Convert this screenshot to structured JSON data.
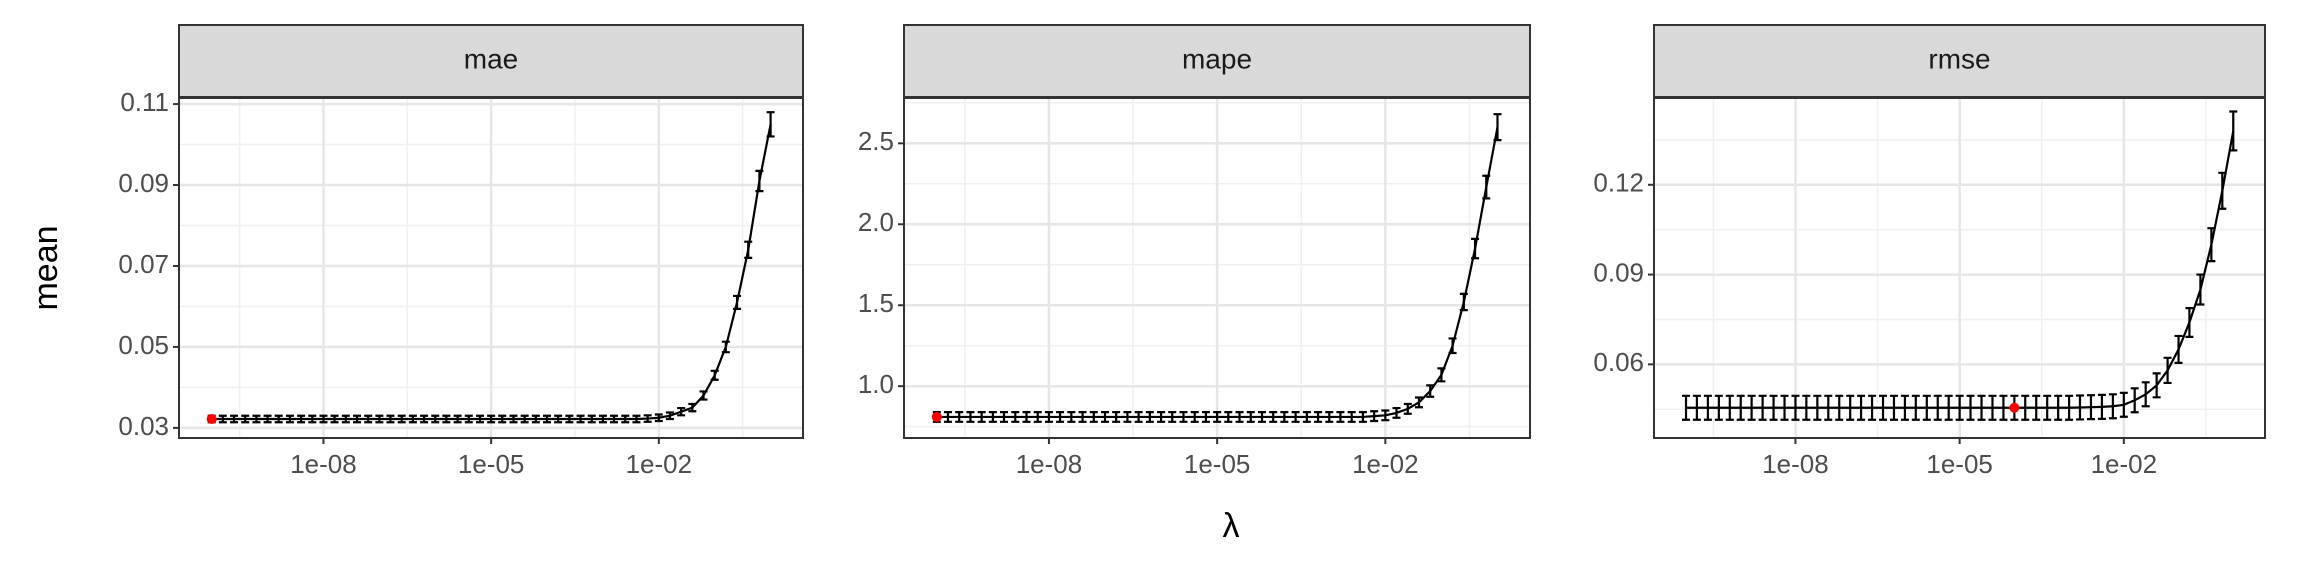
{
  "axis_labels": {
    "x": "λ",
    "y": "mean"
  },
  "chart_data": [
    {
      "type": "line",
      "title": "mae",
      "log_x": true,
      "grid": true,
      "color": "#000000",
      "x": [
        1e-10,
        1.58e-10,
        2.51e-10,
        3.98e-10,
        6.31e-10,
        1e-09,
        1.58e-09,
        2.51e-09,
        3.98e-09,
        6.31e-09,
        1e-08,
        1.58e-08,
        2.51e-08,
        3.98e-08,
        6.31e-08,
        1e-07,
        1.58e-07,
        2.51e-07,
        3.98e-07,
        6.31e-07,
        1e-06,
        1.58e-06,
        2.51e-06,
        3.98e-06,
        6.31e-06,
        1e-05,
        1.58e-05,
        2.51e-05,
        3.98e-05,
        6.31e-05,
        0.0001,
        0.000158,
        0.000251,
        0.000398,
        0.000631,
        0.001,
        0.00158,
        0.00251,
        0.00398,
        0.00631,
        0.01,
        0.0158,
        0.0251,
        0.0398,
        0.0631,
        0.1,
        0.158,
        0.251,
        0.398,
        0.631,
        1
      ],
      "values": [
        0.0322,
        0.0322,
        0.0322,
        0.0322,
        0.0322,
        0.0322,
        0.0322,
        0.0322,
        0.0322,
        0.0322,
        0.0322,
        0.0322,
        0.0322,
        0.0322,
        0.0322,
        0.0322,
        0.0322,
        0.0322,
        0.0322,
        0.0322,
        0.0322,
        0.0322,
        0.0322,
        0.0322,
        0.0322,
        0.0322,
        0.0322,
        0.0322,
        0.0322,
        0.0322,
        0.0322,
        0.0322,
        0.0322,
        0.0322,
        0.0322,
        0.0322,
        0.0322,
        0.0322,
        0.0322,
        0.0323,
        0.0325,
        0.033,
        0.034,
        0.035,
        0.038,
        0.043,
        0.05,
        0.061,
        0.074,
        0.091,
        0.105
      ],
      "errors": [
        0.0008,
        0.0008,
        0.0008,
        0.0008,
        0.0008,
        0.0008,
        0.0008,
        0.0008,
        0.0008,
        0.0008,
        0.0008,
        0.0008,
        0.0008,
        0.0008,
        0.0008,
        0.0008,
        0.0008,
        0.0008,
        0.0008,
        0.0008,
        0.0008,
        0.0008,
        0.0008,
        0.0008,
        0.0008,
        0.0008,
        0.0008,
        0.0008,
        0.0008,
        0.0008,
        0.0008,
        0.0008,
        0.0008,
        0.0008,
        0.0008,
        0.0008,
        0.0008,
        0.0008,
        0.0008,
        0.0008,
        0.0008,
        0.0008,
        0.0009,
        0.0009,
        0.001,
        0.0011,
        0.0013,
        0.0016,
        0.002,
        0.0025,
        0.003
      ],
      "highlight": {
        "x": 1e-10,
        "y": 0.0322,
        "color": "#ff0000"
      },
      "xlim": [
        2.6e-11,
        3.8
      ],
      "xticks": [
        {
          "value": 1e-08,
          "label": "1e-08"
        },
        {
          "value": 1e-05,
          "label": "1e-05"
        },
        {
          "value": 0.01,
          "label": "1e-02"
        }
      ],
      "ylim": [
        0.0275,
        0.1115
      ],
      "yticks": [
        0.03,
        0.05,
        0.07,
        0.09,
        0.11
      ]
    },
    {
      "type": "line",
      "title": "mape",
      "log_x": true,
      "grid": true,
      "color": "#000000",
      "x": [
        1e-10,
        1.58e-10,
        2.51e-10,
        3.98e-10,
        6.31e-10,
        1e-09,
        1.58e-09,
        2.51e-09,
        3.98e-09,
        6.31e-09,
        1e-08,
        1.58e-08,
        2.51e-08,
        3.98e-08,
        6.31e-08,
        1e-07,
        1.58e-07,
        2.51e-07,
        3.98e-07,
        6.31e-07,
        1e-06,
        1.58e-06,
        2.51e-06,
        3.98e-06,
        6.31e-06,
        1e-05,
        1.58e-05,
        2.51e-05,
        3.98e-05,
        6.31e-05,
        0.0001,
        0.000158,
        0.000251,
        0.000398,
        0.000631,
        0.001,
        0.00158,
        0.00251,
        0.00398,
        0.00631,
        0.01,
        0.0158,
        0.0251,
        0.0398,
        0.0631,
        0.1,
        0.158,
        0.251,
        0.398,
        0.631,
        1
      ],
      "values": [
        0.81,
        0.81,
        0.81,
        0.81,
        0.81,
        0.81,
        0.81,
        0.81,
        0.81,
        0.81,
        0.81,
        0.81,
        0.81,
        0.81,
        0.81,
        0.81,
        0.81,
        0.81,
        0.81,
        0.81,
        0.81,
        0.81,
        0.81,
        0.81,
        0.81,
        0.81,
        0.81,
        0.81,
        0.81,
        0.81,
        0.81,
        0.81,
        0.81,
        0.81,
        0.81,
        0.81,
        0.81,
        0.81,
        0.81,
        0.815,
        0.82,
        0.835,
        0.86,
        0.9,
        0.97,
        1.07,
        1.25,
        1.52,
        1.85,
        2.23,
        2.6
      ],
      "errors": [
        0.03,
        0.03,
        0.03,
        0.03,
        0.03,
        0.03,
        0.03,
        0.03,
        0.03,
        0.03,
        0.03,
        0.03,
        0.03,
        0.03,
        0.03,
        0.03,
        0.03,
        0.03,
        0.03,
        0.03,
        0.03,
        0.03,
        0.03,
        0.03,
        0.03,
        0.03,
        0.03,
        0.03,
        0.03,
        0.03,
        0.03,
        0.03,
        0.03,
        0.03,
        0.03,
        0.03,
        0.03,
        0.03,
        0.03,
        0.03,
        0.03,
        0.03,
        0.03,
        0.03,
        0.035,
        0.04,
        0.045,
        0.05,
        0.06,
        0.07,
        0.08
      ],
      "highlight": {
        "x": 1e-10,
        "y": 0.81,
        "color": "#ff0000"
      },
      "xlim": [
        2.6e-11,
        3.8
      ],
      "xticks": [
        {
          "value": 1e-08,
          "label": "1e-08"
        },
        {
          "value": 1e-05,
          "label": "1e-05"
        },
        {
          "value": 0.01,
          "label": "1e-02"
        }
      ],
      "ylim": [
        0.68,
        2.78
      ],
      "yticks": [
        {
          "value": 1,
          "label": "1.0"
        },
        1.5,
        {
          "value": 2,
          "label": "2.0"
        },
        2.5
      ]
    },
    {
      "type": "line",
      "title": "rmse",
      "log_x": true,
      "grid": true,
      "color": "#000000",
      "x": [
        1e-10,
        1.58e-10,
        2.51e-10,
        3.98e-10,
        6.31e-10,
        1e-09,
        1.58e-09,
        2.51e-09,
        3.98e-09,
        6.31e-09,
        1e-08,
        1.58e-08,
        2.51e-08,
        3.98e-08,
        6.31e-08,
        1e-07,
        1.58e-07,
        2.51e-07,
        3.98e-07,
        6.31e-07,
        1e-06,
        1.58e-06,
        2.51e-06,
        3.98e-06,
        6.31e-06,
        1e-05,
        1.58e-05,
        2.51e-05,
        3.98e-05,
        6.31e-05,
        0.0001,
        0.000158,
        0.000251,
        0.000398,
        0.000631,
        0.001,
        0.00158,
        0.00251,
        0.00398,
        0.00631,
        0.01,
        0.0158,
        0.0251,
        0.0398,
        0.0631,
        0.1,
        0.158,
        0.251,
        0.398,
        0.631,
        1
      ],
      "values": [
        0.0455,
        0.0455,
        0.0455,
        0.0455,
        0.0455,
        0.0455,
        0.0455,
        0.0455,
        0.0455,
        0.0455,
        0.0455,
        0.0455,
        0.0455,
        0.0455,
        0.0455,
        0.0455,
        0.0455,
        0.0455,
        0.0455,
        0.0455,
        0.0455,
        0.0455,
        0.0455,
        0.0455,
        0.0455,
        0.0455,
        0.0455,
        0.0455,
        0.0455,
        0.0455,
        0.0455,
        0.0455,
        0.0455,
        0.0455,
        0.0455,
        0.0455,
        0.0456,
        0.0457,
        0.0458,
        0.046,
        0.0465,
        0.048,
        0.05,
        0.053,
        0.058,
        0.065,
        0.074,
        0.085,
        0.1,
        0.118,
        0.138
      ],
      "errors": [
        0.004,
        0.004,
        0.004,
        0.004,
        0.004,
        0.004,
        0.004,
        0.004,
        0.004,
        0.004,
        0.004,
        0.004,
        0.004,
        0.004,
        0.004,
        0.004,
        0.004,
        0.004,
        0.004,
        0.004,
        0.004,
        0.004,
        0.004,
        0.004,
        0.004,
        0.004,
        0.004,
        0.004,
        0.004,
        0.004,
        0.004,
        0.004,
        0.004,
        0.004,
        0.004,
        0.004,
        0.004,
        0.004,
        0.004,
        0.004,
        0.004,
        0.004,
        0.004,
        0.004,
        0.0042,
        0.0045,
        0.0048,
        0.005,
        0.0055,
        0.006,
        0.0065
      ],
      "highlight": {
        "x": 0.0001,
        "y": 0.0455,
        "color": "#ff0000"
      },
      "xlim": [
        2.6e-11,
        3.8
      ],
      "xticks": [
        {
          "value": 1e-08,
          "label": "1e-08"
        },
        {
          "value": 1e-05,
          "label": "1e-05"
        },
        {
          "value": 0.01,
          "label": "1e-02"
        }
      ],
      "ylim": [
        0.0354,
        0.149
      ],
      "yticks": [
        0.06,
        0.09,
        0.12
      ]
    }
  ]
}
